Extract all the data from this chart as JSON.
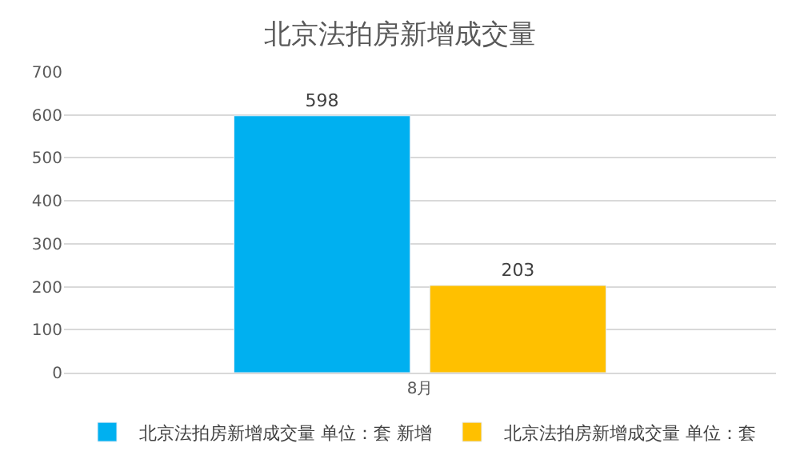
{
  "chart_data": {
    "type": "bar",
    "title": "北京法拍房新增成交量",
    "categories": [
      "8月"
    ],
    "series": [
      {
        "name": "北京法拍房新增成交量 单位：套 新增",
        "color": "#00b0f0",
        "values": [
          598
        ]
      },
      {
        "name": "北京法拍房新增成交量 单位：套",
        "color": "#ffc000",
        "values": [
          203
        ]
      }
    ],
    "ylim": [
      0,
      700
    ],
    "yticks": [
      0,
      100,
      200,
      300,
      400,
      500,
      600,
      700
    ],
    "grid": "y",
    "legend": "bottom",
    "data_labels": true
  }
}
